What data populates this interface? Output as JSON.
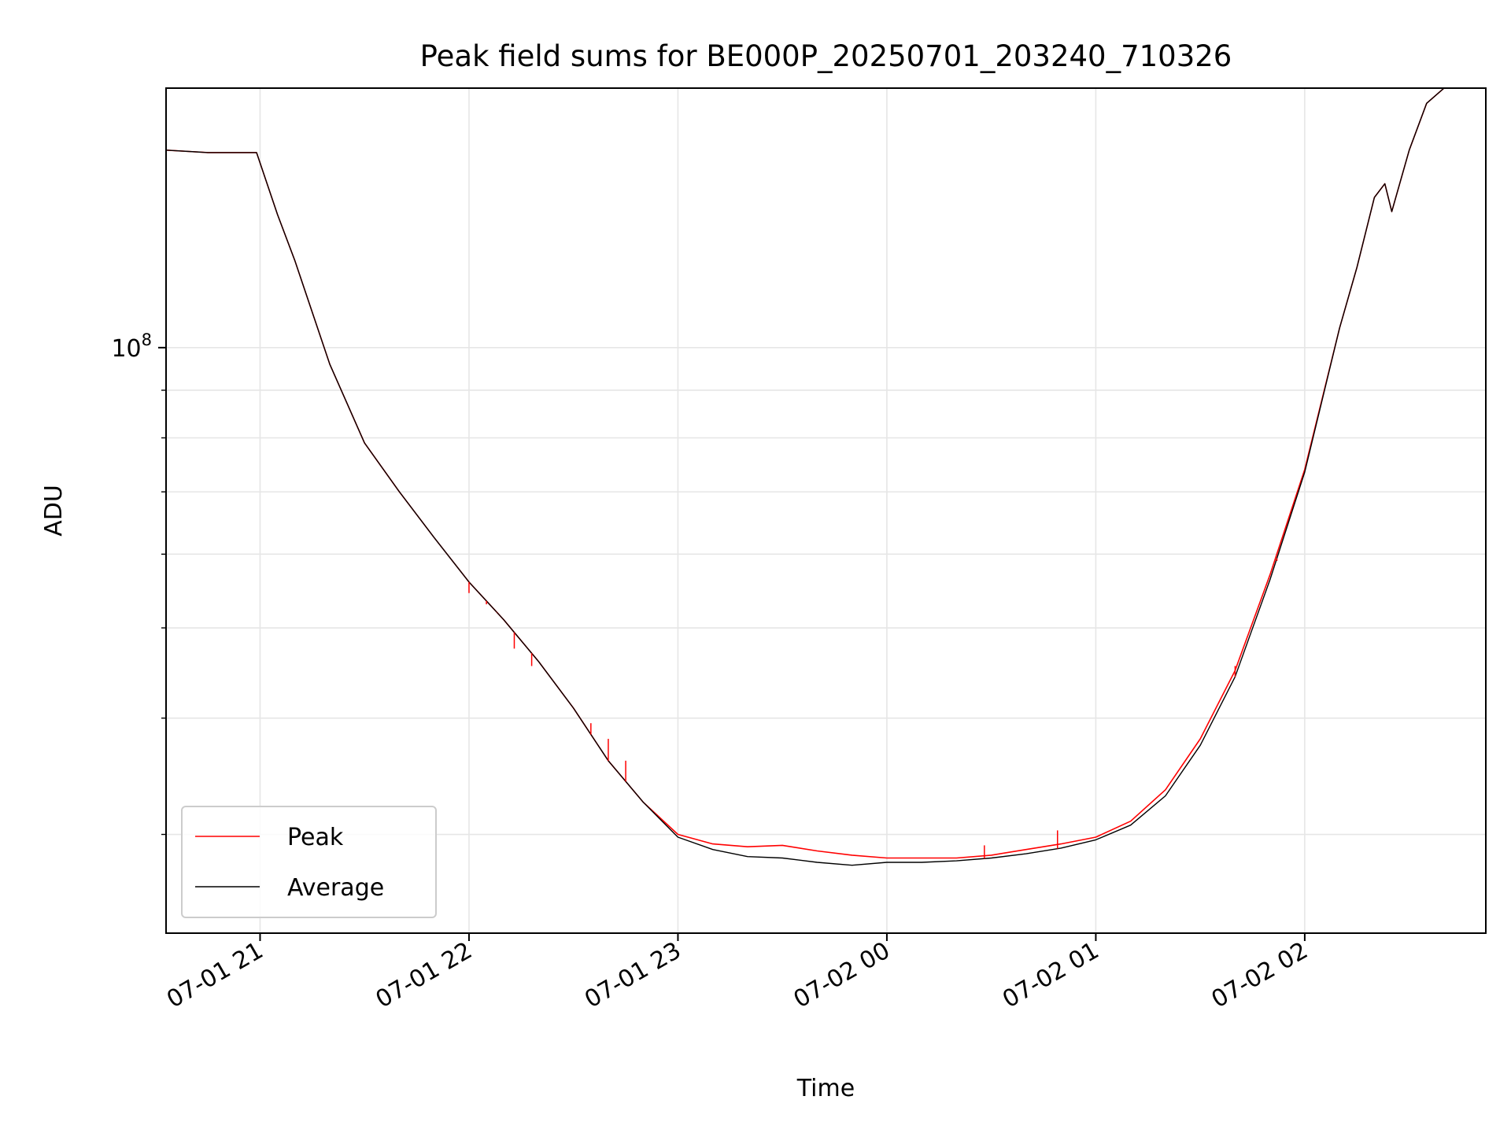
{
  "chart_data": {
    "type": "line",
    "title": "Peak field sums for BE000P_20250701_203240_710326",
    "xlabel": "Time",
    "ylabel": "ADU",
    "y_scale": "log",
    "xlim": [
      "2025-07-01 20:33",
      "2025-07-02 02:52"
    ],
    "ylim": [
      23500000,
      190000000
    ],
    "grid": true,
    "legend_position": "lower-left",
    "x_ticks": [
      {
        "value": "2025-07-01 21:00",
        "label": "07-01 21"
      },
      {
        "value": "2025-07-01 22:00",
        "label": "07-01 22"
      },
      {
        "value": "2025-07-01 23:00",
        "label": "07-01 23"
      },
      {
        "value": "2025-07-02 00:00",
        "label": "07-02 00"
      },
      {
        "value": "2025-07-02 01:00",
        "label": "07-02 01"
      },
      {
        "value": "2025-07-02 02:00",
        "label": "07-02 02"
      }
    ],
    "y_ticks": [
      {
        "value": 100000000,
        "label_base": "10",
        "label_exp": "8"
      }
    ],
    "series": [
      {
        "name": "Peak",
        "color": "#ff0000",
        "points": [
          [
            "2025-07-01 20:33",
            163000000
          ],
          [
            "2025-07-01 20:45",
            162000000
          ],
          [
            "2025-07-01 20:59",
            162000000
          ],
          [
            "2025-07-01 21:05",
            139000000
          ],
          [
            "2025-07-01 21:10",
            124000000
          ],
          [
            "2025-07-01 21:20",
            96000000
          ],
          [
            "2025-07-01 21:30",
            79000000
          ],
          [
            "2025-07-01 21:40",
            70000000
          ],
          [
            "2025-07-01 21:50",
            62500000
          ],
          [
            "2025-07-01 22:00",
            56000000
          ],
          [
            "2025-07-01 22:10",
            51000000
          ],
          [
            "2025-07-01 22:20",
            46000000
          ],
          [
            "2025-07-01 22:30",
            41000000
          ],
          [
            "2025-07-01 22:40",
            36000000
          ],
          [
            "2025-07-01 22:50",
            32500000
          ],
          [
            "2025-07-01 23:00",
            30000000
          ],
          [
            "2025-07-01 23:10",
            29300000
          ],
          [
            "2025-07-01 23:20",
            29100000
          ],
          [
            "2025-07-01 23:30",
            29200000
          ],
          [
            "2025-07-01 23:40",
            28800000
          ],
          [
            "2025-07-01 23:50",
            28500000
          ],
          [
            "2025-07-02 00:00",
            28300000
          ],
          [
            "2025-07-02 00:10",
            28300000
          ],
          [
            "2025-07-02 00:20",
            28300000
          ],
          [
            "2025-07-02 00:30",
            28500000
          ],
          [
            "2025-07-02 00:40",
            28900000
          ],
          [
            "2025-07-02 00:50",
            29300000
          ],
          [
            "2025-07-02 01:00",
            29800000
          ],
          [
            "2025-07-02 01:10",
            31000000
          ],
          [
            "2025-07-02 01:20",
            33500000
          ],
          [
            "2025-07-02 01:30",
            38000000
          ],
          [
            "2025-07-02 01:40",
            45000000
          ],
          [
            "2025-07-02 01:50",
            57000000
          ],
          [
            "2025-07-02 02:00",
            74000000
          ],
          [
            "2025-07-02 02:10",
            105000000
          ],
          [
            "2025-07-02 02:15",
            122000000
          ],
          [
            "2025-07-02 02:20",
            145000000
          ],
          [
            "2025-07-02 02:23",
            150000000
          ],
          [
            "2025-07-02 02:25",
            140000000
          ],
          [
            "2025-07-02 02:30",
            163000000
          ],
          [
            "2025-07-02 02:35",
            183000000
          ],
          [
            "2025-07-02 02:40",
            190000000
          ]
        ]
      },
      {
        "name": "Average",
        "color": "#000000",
        "points": [
          [
            "2025-07-01 20:33",
            163000000
          ],
          [
            "2025-07-01 20:45",
            162000000
          ],
          [
            "2025-07-01 20:59",
            162000000
          ],
          [
            "2025-07-01 21:05",
            139000000
          ],
          [
            "2025-07-01 21:10",
            124000000
          ],
          [
            "2025-07-01 21:20",
            96000000
          ],
          [
            "2025-07-01 21:30",
            79000000
          ],
          [
            "2025-07-01 21:40",
            70000000
          ],
          [
            "2025-07-01 21:50",
            62500000
          ],
          [
            "2025-07-01 22:00",
            56000000
          ],
          [
            "2025-07-01 22:10",
            51000000
          ],
          [
            "2025-07-01 22:20",
            46000000
          ],
          [
            "2025-07-01 22:30",
            41000000
          ],
          [
            "2025-07-01 22:40",
            36000000
          ],
          [
            "2025-07-01 22:50",
            32500000
          ],
          [
            "2025-07-01 23:00",
            29800000
          ],
          [
            "2025-07-01 23:10",
            28900000
          ],
          [
            "2025-07-01 23:20",
            28400000
          ],
          [
            "2025-07-01 23:30",
            28300000
          ],
          [
            "2025-07-01 23:40",
            28000000
          ],
          [
            "2025-07-01 23:50",
            27800000
          ],
          [
            "2025-07-02 00:00",
            28000000
          ],
          [
            "2025-07-02 00:10",
            28000000
          ],
          [
            "2025-07-02 00:20",
            28100000
          ],
          [
            "2025-07-02 00:30",
            28300000
          ],
          [
            "2025-07-02 00:40",
            28600000
          ],
          [
            "2025-07-02 00:50",
            29000000
          ],
          [
            "2025-07-02 01:00",
            29600000
          ],
          [
            "2025-07-02 01:10",
            30700000
          ],
          [
            "2025-07-02 01:20",
            33000000
          ],
          [
            "2025-07-02 01:30",
            37400000
          ],
          [
            "2025-07-02 01:40",
            44300000
          ],
          [
            "2025-07-02 01:50",
            56300000
          ],
          [
            "2025-07-02 02:00",
            73500000
          ],
          [
            "2025-07-02 02:10",
            105000000
          ],
          [
            "2025-07-02 02:15",
            122000000
          ],
          [
            "2025-07-02 02:20",
            145000000
          ],
          [
            "2025-07-02 02:23",
            150000000
          ],
          [
            "2025-07-02 02:25",
            140000000
          ],
          [
            "2025-07-02 02:30",
            163000000
          ],
          [
            "2025-07-02 02:35",
            183000000
          ],
          [
            "2025-07-02 02:40",
            190000000
          ]
        ]
      }
    ],
    "spikes": {
      "Peak": [
        [
          "2025-07-01 22:00",
          54500000
        ],
        [
          "2025-07-01 22:05",
          53000000
        ],
        [
          "2025-07-01 22:08",
          52000000
        ],
        [
          "2025-07-01 22:13",
          47500000
        ],
        [
          "2025-07-01 22:18",
          45500000
        ],
        [
          "2025-07-01 22:35",
          39500000
        ],
        [
          "2025-07-01 22:40",
          38000000
        ],
        [
          "2025-07-01 22:45",
          36000000
        ],
        [
          "2025-07-02 00:28",
          29200000
        ],
        [
          "2025-07-02 00:49",
          30300000
        ],
        [
          "2025-07-02 01:40",
          45500000
        ],
        [
          "2025-07-02 01:52",
          59000000
        ]
      ]
    }
  }
}
